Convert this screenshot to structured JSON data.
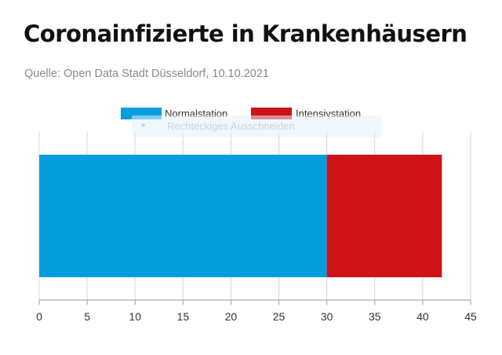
{
  "header": {
    "title": "Coronainfizierte in Krankenhäusern",
    "source": "Quelle: Open Data Stadt Düsseldorf, 10.10.2021"
  },
  "overlay_hint": "Rechteckiges Ausschneiden",
  "chart_data": {
    "type": "bar",
    "orientation": "horizontal",
    "stacked": true,
    "categories": [
      ""
    ],
    "series": [
      {
        "name": "Normalstation",
        "values": [
          30
        ],
        "color": "#069ddf"
      },
      {
        "name": "Intensivstation",
        "values": [
          12
        ],
        "color": "#cd1316"
      }
    ],
    "xlim": [
      0,
      45
    ],
    "xticks": [
      0,
      5,
      10,
      15,
      20,
      25,
      30,
      35,
      40,
      45
    ],
    "legend": "top-center",
    "grid": true
  }
}
